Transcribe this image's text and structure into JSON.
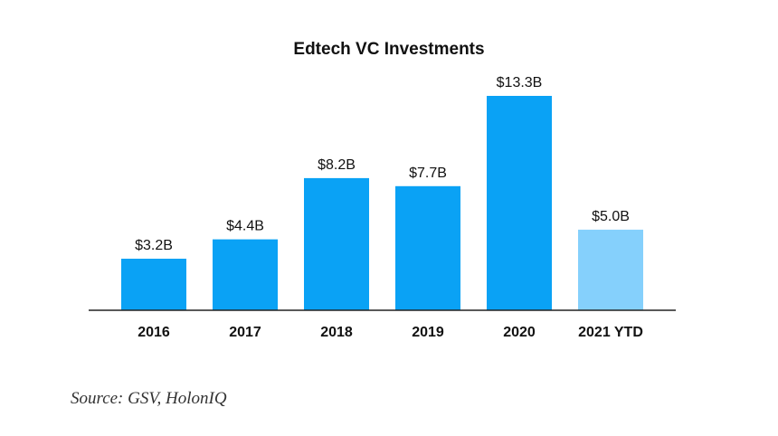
{
  "chart_data": {
    "type": "bar",
    "title": "Edtech VC Investments",
    "categories": [
      "2016",
      "2017",
      "2018",
      "2019",
      "2020",
      "2021 YTD"
    ],
    "values": [
      3.2,
      4.4,
      8.2,
      7.7,
      13.3,
      5.0
    ],
    "value_labels": [
      "$3.2B",
      "$4.4B",
      "$8.2B",
      "$7.7B",
      "$13.3B",
      "$5.0B"
    ],
    "xlabel": "",
    "ylabel": "",
    "ylim": [
      0,
      13.3
    ],
    "grid": false,
    "legend": "none",
    "colors": {
      "bar": "#0aa2f5",
      "bar_highlight": "#85d0fc",
      "axis": "#222222"
    },
    "highlighted_categories": [
      "2021 YTD"
    ]
  },
  "source": "Source: GSV, HolonIQ"
}
